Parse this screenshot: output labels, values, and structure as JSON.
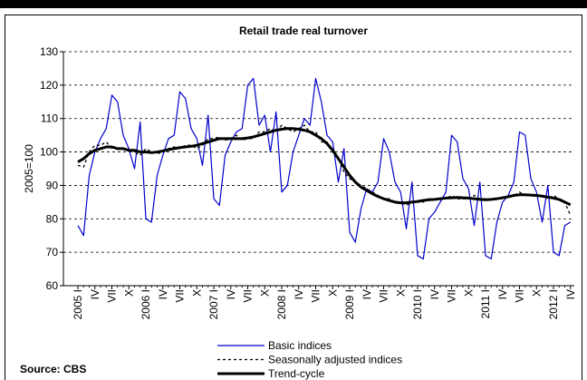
{
  "chart_data": {
    "type": "line",
    "title": "Retail trade real turnover",
    "y_label": "2005=100",
    "source": "Source: CBS",
    "categories": [
      "2005 I",
      null,
      null,
      "IV",
      null,
      null,
      "VII",
      null,
      null,
      "X",
      null,
      null,
      "2006 I",
      null,
      null,
      "IV",
      null,
      null,
      "VII",
      null,
      null,
      "X",
      null,
      null,
      "2007 I",
      null,
      null,
      "IV",
      null,
      null,
      "VII",
      null,
      null,
      "X",
      null,
      null,
      "2008 I",
      null,
      null,
      "IV",
      null,
      null,
      "VII",
      null,
      null,
      "X",
      null,
      null,
      "2009 I",
      null,
      null,
      "IV",
      null,
      null,
      "VII",
      null,
      null,
      "X",
      null,
      null,
      "2010 I",
      null,
      null,
      "IV",
      null,
      null,
      "VII",
      null,
      null,
      "X",
      null,
      null,
      "2011 I",
      null,
      null,
      "IV",
      null,
      null,
      "VII",
      null,
      null,
      "X",
      null,
      null,
      "2012 I",
      null,
      null,
      "IV"
    ],
    "series": [
      {
        "name": "Basic indices",
        "color": "#0000cc",
        "style": "solid",
        "width": 1.2,
        "values": [
          78,
          75,
          93,
          100,
          104,
          107,
          117,
          115,
          105,
          101,
          95,
          109,
          80,
          79,
          93,
          99,
          104,
          105,
          118,
          116,
          107,
          104,
          96,
          111,
          86,
          84,
          99,
          103,
          106,
          107,
          120,
          122,
          108,
          111,
          100,
          112,
          88,
          90,
          100,
          105,
          110,
          108,
          122,
          115,
          105,
          103,
          91,
          101,
          76,
          73,
          83,
          89,
          88,
          91,
          104,
          100,
          91,
          88,
          77,
          91,
          69,
          68,
          80,
          82,
          85,
          88,
          105,
          103,
          92,
          89,
          78,
          91,
          69,
          68,
          79,
          85,
          87,
          91,
          106,
          105,
          92,
          88,
          79,
          90,
          70,
          69,
          78,
          79
        ]
      },
      {
        "name": "Seasonally adjusted indices",
        "color": "#000000",
        "style": "dashed",
        "width": 1.3,
        "values": [
          96,
          95.5,
          100,
          102,
          102,
          103,
          101,
          101,
          101,
          100.5,
          100,
          99,
          101,
          100,
          99.5,
          100,
          101,
          101.5,
          101,
          102,
          102,
          101,
          102,
          104,
          104,
          104.5,
          103.5,
          104,
          105,
          103.5,
          104,
          104,
          106,
          106,
          107,
          106,
          108,
          107,
          106,
          107,
          108,
          106,
          106,
          103,
          103,
          100,
          98,
          94,
          92,
          91,
          90,
          89,
          88,
          87,
          86,
          86,
          85,
          85,
          84,
          85,
          85,
          85,
          86,
          86,
          86,
          86,
          87,
          86,
          86,
          86,
          87,
          86,
          86,
          86,
          86,
          86,
          87,
          87,
          88,
          87,
          87,
          87,
          87,
          86,
          87,
          86,
          85,
          81
        ]
      },
      {
        "name": "Trend-cycle",
        "color": "#000000",
        "style": "solid",
        "width": 3,
        "values": [
          97,
          98,
          99.5,
          100.5,
          101,
          101.5,
          101.5,
          101,
          101,
          100.5,
          100.5,
          100,
          100,
          99.8,
          100,
          100.3,
          100.7,
          101,
          101.3,
          101.5,
          101.7,
          102,
          102.5,
          103,
          103.5,
          104,
          104,
          104,
          104,
          104,
          104.2,
          104.5,
          105,
          105.5,
          106,
          106.5,
          106.8,
          107,
          107,
          106.8,
          106.5,
          106,
          105,
          104,
          102.5,
          100.5,
          98,
          95.5,
          93,
          91,
          89.5,
          88.5,
          87.5,
          86.7,
          86,
          85.5,
          85,
          84.8,
          84.8,
          85,
          85.2,
          85.5,
          85.7,
          85.8,
          86,
          86.2,
          86.3,
          86.4,
          86.3,
          86.2,
          86,
          85.8,
          85.7,
          85.8,
          86,
          86.3,
          86.6,
          87,
          87.2,
          87.2,
          87.1,
          87,
          86.8,
          86.5,
          86.2,
          85.8,
          85,
          84.2
        ]
      }
    ],
    "ylim": [
      60,
      130
    ],
    "yticks": [
      60,
      70,
      80,
      90,
      100,
      110,
      120,
      130
    ],
    "grid": true,
    "legend": "bottom"
  }
}
